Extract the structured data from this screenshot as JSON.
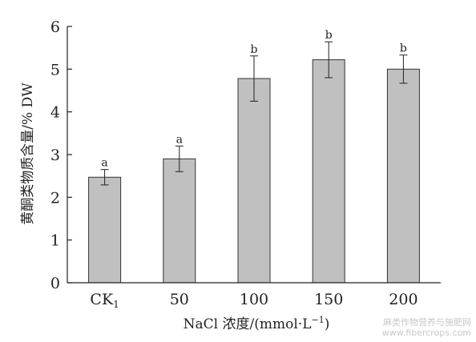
{
  "chart_data": {
    "type": "bar",
    "categories": [
      "CK1",
      "50",
      "100",
      "150",
      "200"
    ],
    "category_labels": [
      {
        "main": "CK",
        "sub": "1"
      },
      {
        "main": "50",
        "sub": ""
      },
      {
        "main": "100",
        "sub": ""
      },
      {
        "main": "150",
        "sub": ""
      },
      {
        "main": "200",
        "sub": ""
      }
    ],
    "values": [
      2.47,
      2.9,
      4.78,
      5.22,
      5.0
    ],
    "errors": [
      0.18,
      0.3,
      0.53,
      0.42,
      0.33
    ],
    "significance": [
      "a",
      "a",
      "b",
      "b",
      "b"
    ],
    "xlabel": "NaCl 浓度/(mmol·L",
    "xlabel_sup": "−1",
    "xlabel_close": ")",
    "ylabel": "黄酮类物质含量/% DW",
    "ylim": [
      0,
      6
    ],
    "yticks": [
      0,
      1,
      2,
      3,
      4,
      5,
      6
    ],
    "grid": false,
    "legend": "none",
    "bar_color": "#c0c0c0",
    "bar_edge_color": "#333333"
  },
  "watermark": {
    "line1": "麻类作物营养与施肥网",
    "line2": "www.fibercrops.com"
  }
}
